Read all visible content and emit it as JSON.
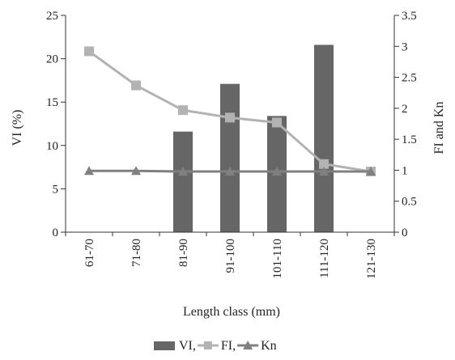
{
  "chart_data": {
    "type": "bar",
    "categories": [
      "61-70",
      "71-80",
      "81-90",
      "91-100",
      "101-110",
      "111-120",
      "121-130"
    ],
    "xlabel": "Length class (mm)",
    "ylabel_left": "VI (%)",
    "ylabel_right": "FI and Kn",
    "ylim_left": [
      0,
      25
    ],
    "ylim_right": [
      0,
      3.5
    ],
    "yticks_left": [
      "0",
      "5",
      "10",
      "15",
      "20",
      "25"
    ],
    "yticks_right": [
      "0",
      "0.5",
      "1",
      "1.5",
      "2",
      "2.5",
      "3",
      "3.5"
    ],
    "grid": false,
    "legend_position": "bottom",
    "series": [
      {
        "name": "VI,",
        "type": "bar",
        "axis": "left",
        "color": "#666666",
        "values": [
          null,
          null,
          11.6,
          17.1,
          13.4,
          21.6,
          null
        ]
      },
      {
        "name": "FI,",
        "type": "line",
        "axis": "right",
        "marker": "square",
        "color": "#b3b3b3",
        "values": [
          2.92,
          2.37,
          1.97,
          1.85,
          1.77,
          1.1,
          0.98
        ]
      },
      {
        "name": "Kn",
        "type": "line",
        "axis": "right",
        "marker": "triangle",
        "color": "#808080",
        "values": [
          0.99,
          0.99,
          0.98,
          0.98,
          0.98,
          0.98,
          0.98
        ]
      }
    ]
  }
}
